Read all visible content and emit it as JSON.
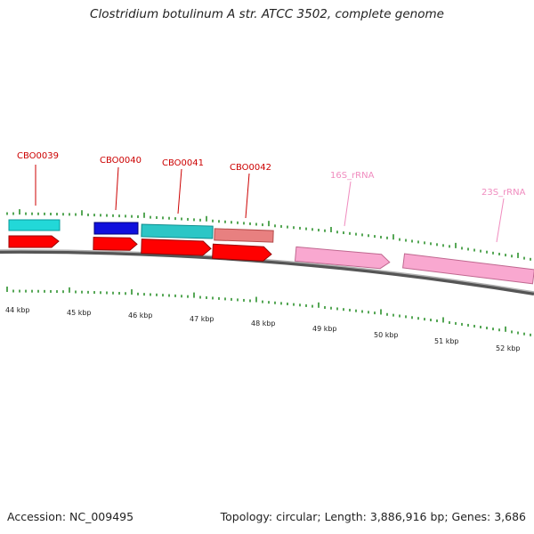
{
  "title": "Clostridium botulinum A str. ATCC 3502, complete genome",
  "footer": {
    "accession": "Accession: NC_009495",
    "summary": "Topology: circular; Length: 3,886,916 bp; Genes: 3,686"
  },
  "ticks": [
    {
      "label": "44 kbp"
    },
    {
      "label": "45 kbp"
    },
    {
      "label": "46 kbp"
    },
    {
      "label": "47 kbp"
    },
    {
      "label": "48 kbp"
    },
    {
      "label": "49 kbp"
    },
    {
      "label": "50 kbp"
    },
    {
      "label": "51 kbp"
    },
    {
      "label": "52 kbp"
    }
  ],
  "feature_labels": [
    {
      "text": "CBO0039",
      "color": "#cc0000"
    },
    {
      "text": "CBO0040",
      "color": "#cc0000"
    },
    {
      "text": "CBO0041",
      "color": "#cc0000"
    },
    {
      "text": "CBO0042",
      "color": "#cc0000"
    },
    {
      "text": "16S_rRNA",
      "color": "#f08cbf"
    },
    {
      "text": "23S_rRNA",
      "color": "#f08cbf"
    }
  ],
  "colors": {
    "backbone": "#8a8a8a",
    "tick": "#1e8a1e",
    "cds": "#ff0000",
    "rrna": "#f9a8d0",
    "cyan": "#22d8d8",
    "blue": "#1010dd",
    "teal": "#2cc6c6",
    "salmon": "#e88080"
  }
}
